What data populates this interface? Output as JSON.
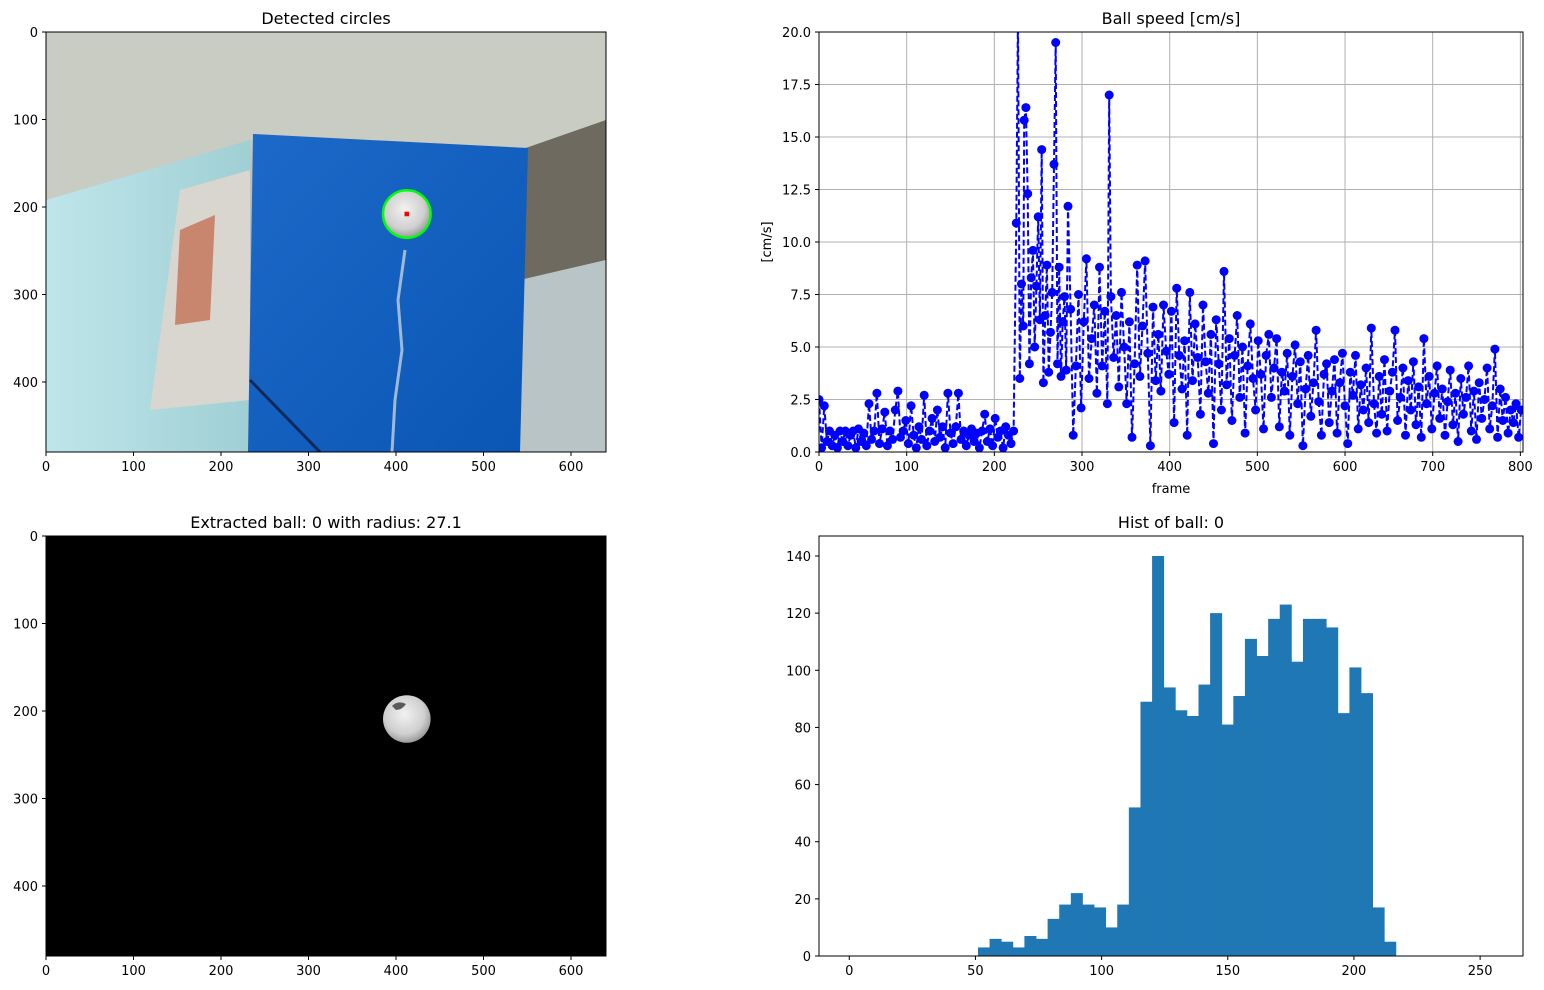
{
  "colors": {
    "speed_line": "#0000ff",
    "hist_bar": "#1f77b4",
    "grid": "#b0b0b0",
    "circle_outline": "#00ff00",
    "circle_center": "#ff0000",
    "background": "#000000"
  },
  "chart_data": [
    {
      "type": "image",
      "title": "Detected circles",
      "x_ticks": [
        "0",
        "100",
        "200",
        "300",
        "400",
        "500",
        "600"
      ],
      "y_ticks": [
        "0",
        "100",
        "200",
        "300",
        "400"
      ],
      "xlim": [
        0,
        640
      ],
      "ylim": [
        480,
        0
      ],
      "circle": {
        "x": 412,
        "y": 209,
        "r": 27.1
      }
    },
    {
      "type": "line",
      "title": "Ball speed [cm/s]",
      "xlabel": "frame",
      "ylabel": "[cm/s]",
      "xlim": [
        0,
        803
      ],
      "ylim": [
        0,
        20
      ],
      "grid": true,
      "marker": "circle",
      "linestyle": "dashed",
      "x_ticks": [
        "0",
        "100",
        "200",
        "300",
        "400",
        "500",
        "600",
        "700",
        "800"
      ],
      "y_ticks": [
        "0.0",
        "2.5",
        "5.0",
        "7.5",
        "10.0",
        "12.5",
        "15.0",
        "17.5",
        "20.0"
      ],
      "samples": [
        [
          0,
          2.5
        ],
        [
          3,
          0.2
        ],
        [
          6,
          2.2
        ],
        [
          9,
          0.5
        ],
        [
          12,
          1.0
        ],
        [
          15,
          0.3
        ],
        [
          18,
          0.8
        ],
        [
          21,
          0.2
        ],
        [
          24,
          1.0
        ],
        [
          27,
          0.5
        ],
        [
          30,
          1.0
        ],
        [
          33,
          0.3
        ],
        [
          36,
          0.8
        ],
        [
          39,
          1.0
        ],
        [
          42,
          0.2
        ],
        [
          45,
          1.1
        ],
        [
          48,
          0.5
        ],
        [
          51,
          0.9
        ],
        [
          54,
          0.3
        ],
        [
          57,
          2.3
        ],
        [
          60,
          0.6
        ],
        [
          63,
          1.0
        ],
        [
          66,
          2.8
        ],
        [
          69,
          0.4
        ],
        [
          72,
          1.1
        ],
        [
          75,
          1.9
        ],
        [
          78,
          0.3
        ],
        [
          81,
          1.0
        ],
        [
          84,
          0.6
        ],
        [
          87,
          2.0
        ],
        [
          90,
          2.9
        ],
        [
          93,
          0.7
        ],
        [
          96,
          1.0
        ],
        [
          99,
          1.5
        ],
        [
          102,
          0.4
        ],
        [
          105,
          2.2
        ],
        [
          108,
          0.8
        ],
        [
          111,
          0.2
        ],
        [
          114,
          1.2
        ],
        [
          117,
          0.6
        ],
        [
          120,
          2.7
        ],
        [
          123,
          0.3
        ],
        [
          126,
          1.0
        ],
        [
          129,
          1.6
        ],
        [
          132,
          0.5
        ],
        [
          135,
          2.0
        ],
        [
          138,
          0.7
        ],
        [
          141,
          1.2
        ],
        [
          144,
          0.2
        ],
        [
          147,
          2.8
        ],
        [
          150,
          0.9
        ],
        [
          153,
          0.4
        ],
        [
          156,
          1.2
        ],
        [
          159,
          2.8
        ],
        [
          162,
          0.6
        ],
        [
          165,
          1.0
        ],
        [
          168,
          0.3
        ],
        [
          171,
          0.8
        ],
        [
          174,
          1.1
        ],
        [
          177,
          0.5
        ],
        [
          180,
          0.9
        ],
        [
          183,
          0.2
        ],
        [
          186,
          1.0
        ],
        [
          189,
          1.8
        ],
        [
          192,
          0.5
        ],
        [
          195,
          1.1
        ],
        [
          198,
          0.3
        ],
        [
          201,
          1.6
        ],
        [
          204,
          0.7
        ],
        [
          207,
          1.0
        ],
        [
          210,
          0.2
        ],
        [
          213,
          1.2
        ],
        [
          216,
          0.8
        ],
        [
          219,
          0.4
        ],
        [
          222,
          1.0
        ],
        [
          225,
          10.9
        ],
        [
          227,
          21.0
        ],
        [
          229,
          3.5
        ],
        [
          231,
          8.0
        ],
        [
          233,
          6.0
        ],
        [
          234,
          15.8
        ],
        [
          236,
          16.4
        ],
        [
          238,
          12.3
        ],
        [
          240,
          4.2
        ],
        [
          242,
          8.3
        ],
        [
          244,
          9.6
        ],
        [
          246,
          5.0
        ],
        [
          248,
          7.9
        ],
        [
          250,
          11.2
        ],
        [
          252,
          6.3
        ],
        [
          254,
          14.4
        ],
        [
          256,
          3.3
        ],
        [
          258,
          6.5
        ],
        [
          260,
          8.9
        ],
        [
          262,
          3.8
        ],
        [
          264,
          5.7
        ],
        [
          266,
          7.6
        ],
        [
          268,
          13.7
        ],
        [
          270,
          19.5
        ],
        [
          272,
          4.2
        ],
        [
          274,
          8.8
        ],
        [
          276,
          3.6
        ],
        [
          278,
          6.2
        ],
        [
          280,
          7.4
        ],
        [
          282,
          3.9
        ],
        [
          284,
          11.7
        ],
        [
          287,
          6.8
        ],
        [
          290,
          0.8
        ],
        [
          293,
          4.1
        ],
        [
          296,
          7.5
        ],
        [
          299,
          2.1
        ],
        [
          302,
          6.2
        ],
        [
          305,
          9.2
        ],
        [
          308,
          3.5
        ],
        [
          311,
          5.4
        ],
        [
          314,
          7.0
        ],
        [
          317,
          2.8
        ],
        [
          320,
          8.8
        ],
        [
          323,
          4.1
        ],
        [
          326,
          6.7
        ],
        [
          329,
          2.3
        ],
        [
          331,
          17.0
        ],
        [
          333,
          7.4
        ],
        [
          336,
          4.5
        ],
        [
          339,
          6.5
        ],
        [
          342,
          3.1
        ],
        [
          345,
          7.6
        ],
        [
          348,
          5.0
        ],
        [
          351,
          2.3
        ],
        [
          354,
          6.2
        ],
        [
          357,
          0.7
        ],
        [
          360,
          4.2
        ],
        [
          363,
          8.9
        ],
        [
          366,
          3.6
        ],
        [
          369,
          6.0
        ],
        [
          372,
          9.1
        ],
        [
          375,
          4.7
        ],
        [
          378,
          0.3
        ],
        [
          381,
          6.9
        ],
        [
          384,
          3.4
        ],
        [
          387,
          5.6
        ],
        [
          390,
          2.9
        ],
        [
          393,
          7.0
        ],
        [
          396,
          4.8
        ],
        [
          399,
          3.7
        ],
        [
          402,
          6.7
        ],
        [
          405,
          1.4
        ],
        [
          408,
          7.8
        ],
        [
          411,
          4.6
        ],
        [
          414,
          3.0
        ],
        [
          417,
          5.3
        ],
        [
          420,
          0.8
        ],
        [
          423,
          7.6
        ],
        [
          426,
          3.4
        ],
        [
          429,
          6.1
        ],
        [
          432,
          4.5
        ],
        [
          435,
          1.8
        ],
        [
          438,
          7.0
        ],
        [
          441,
          4.3
        ],
        [
          444,
          2.8
        ],
        [
          447,
          5.6
        ],
        [
          450,
          0.4
        ],
        [
          453,
          6.3
        ],
        [
          456,
          4.2
        ],
        [
          459,
          2.0
        ],
        [
          462,
          8.6
        ],
        [
          465,
          3.2
        ],
        [
          468,
          5.4
        ],
        [
          471,
          1.5
        ],
        [
          474,
          4.6
        ],
        [
          477,
          6.5
        ],
        [
          480,
          2.6
        ],
        [
          483,
          5.0
        ],
        [
          486,
          0.9
        ],
        [
          489,
          4.1
        ],
        [
          492,
          6.1
        ],
        [
          495,
          3.5
        ],
        [
          498,
          2.0
        ],
        [
          501,
          5.3
        ],
        [
          504,
          3.7
        ],
        [
          507,
          1.1
        ],
        [
          510,
          4.6
        ],
        [
          513,
          5.6
        ],
        [
          516,
          2.6
        ],
        [
          519,
          4.0
        ],
        [
          522,
          5.4
        ],
        [
          525,
          1.2
        ],
        [
          528,
          3.8
        ],
        [
          531,
          2.9
        ],
        [
          534,
          4.7
        ],
        [
          537,
          0.8
        ],
        [
          540,
          3.6
        ],
        [
          543,
          5.1
        ],
        [
          546,
          2.3
        ],
        [
          549,
          4.3
        ],
        [
          552,
          0.3
        ],
        [
          555,
          3.0
        ],
        [
          558,
          4.6
        ],
        [
          561,
          1.7
        ],
        [
          564,
          3.3
        ],
        [
          567,
          5.8
        ],
        [
          570,
          2.4
        ],
        [
          573,
          0.8
        ],
        [
          576,
          3.7
        ],
        [
          579,
          4.2
        ],
        [
          582,
          1.4
        ],
        [
          585,
          2.9
        ],
        [
          588,
          4.4
        ],
        [
          591,
          0.9
        ],
        [
          594,
          3.3
        ],
        [
          597,
          4.7
        ],
        [
          600,
          2.2
        ],
        [
          603,
          0.4
        ],
        [
          606,
          3.8
        ],
        [
          609,
          2.7
        ],
        [
          612,
          4.6
        ],
        [
          615,
          1.1
        ],
        [
          618,
          3.2
        ],
        [
          621,
          2.0
        ],
        [
          624,
          4.0
        ],
        [
          627,
          1.4
        ],
        [
          630,
          5.9
        ],
        [
          633,
          2.3
        ],
        [
          636,
          0.9
        ],
        [
          639,
          3.6
        ],
        [
          642,
          1.8
        ],
        [
          645,
          4.4
        ],
        [
          648,
          1.0
        ],
        [
          651,
          2.9
        ],
        [
          654,
          3.8
        ],
        [
          657,
          5.8
        ],
        [
          660,
          1.5
        ],
        [
          663,
          2.6
        ],
        [
          666,
          4.0
        ],
        [
          669,
          0.8
        ],
        [
          672,
          3.4
        ],
        [
          675,
          2.0
        ],
        [
          678,
          4.3
        ],
        [
          681,
          1.3
        ],
        [
          684,
          3.1
        ],
        [
          687,
          0.7
        ],
        [
          690,
          5.4
        ],
        [
          693,
          2.3
        ],
        [
          696,
          3.6
        ],
        [
          699,
          1.1
        ],
        [
          702,
          2.8
        ],
        [
          705,
          4.1
        ],
        [
          708,
          1.6
        ],
        [
          711,
          3.0
        ],
        [
          714,
          0.8
        ],
        [
          717,
          2.4
        ],
        [
          720,
          3.9
        ],
        [
          723,
          1.3
        ],
        [
          726,
          2.8
        ],
        [
          729,
          0.5
        ],
        [
          732,
          3.5
        ],
        [
          735,
          1.8
        ],
        [
          738,
          2.6
        ],
        [
          741,
          4.1
        ],
        [
          744,
          1.0
        ],
        [
          747,
          2.9
        ],
        [
          750,
          0.6
        ],
        [
          753,
          3.3
        ],
        [
          756,
          1.6
        ],
        [
          759,
          2.5
        ],
        [
          762,
          4.0
        ],
        [
          765,
          1.1
        ],
        [
          768,
          2.2
        ],
        [
          771,
          4.9
        ],
        [
          774,
          0.7
        ],
        [
          777,
          3.0
        ],
        [
          780,
          1.5
        ],
        [
          783,
          2.6
        ],
        [
          786,
          0.9
        ],
        [
          789,
          2.0
        ],
        [
          792,
          1.4
        ],
        [
          795,
          2.3
        ],
        [
          798,
          0.7
        ],
        [
          801,
          2.0
        ]
      ]
    },
    {
      "type": "image",
      "title": "Extracted ball: 0 with radius: 27.1",
      "x_ticks": [
        "0",
        "100",
        "200",
        "300",
        "400",
        "500",
        "600"
      ],
      "y_ticks": [
        "0",
        "100",
        "200",
        "300",
        "400"
      ],
      "xlim": [
        0,
        640
      ],
      "ylim": [
        480,
        0
      ],
      "ball": {
        "x": 412,
        "y": 209,
        "r": 27.1
      }
    },
    {
      "type": "bar",
      "title": "Hist of ball: 0",
      "xlim": [
        -12,
        267
      ],
      "ylim": [
        0,
        147
      ],
      "x_ticks": [
        "0",
        "50",
        "100",
        "150",
        "200",
        "250"
      ],
      "y_ticks": [
        "0",
        "20",
        "40",
        "60",
        "80",
        "100",
        "120",
        "140"
      ],
      "bin_start": 51,
      "bin_width": 4.6,
      "counts": [
        3,
        6,
        5,
        3,
        7,
        6,
        13,
        18,
        22,
        18,
        17,
        10,
        18,
        52,
        89,
        140,
        94,
        86,
        84,
        95,
        120,
        81,
        91,
        111,
        105,
        118,
        123,
        103,
        118,
        118,
        115,
        85,
        101,
        92,
        17,
        5
      ]
    }
  ]
}
